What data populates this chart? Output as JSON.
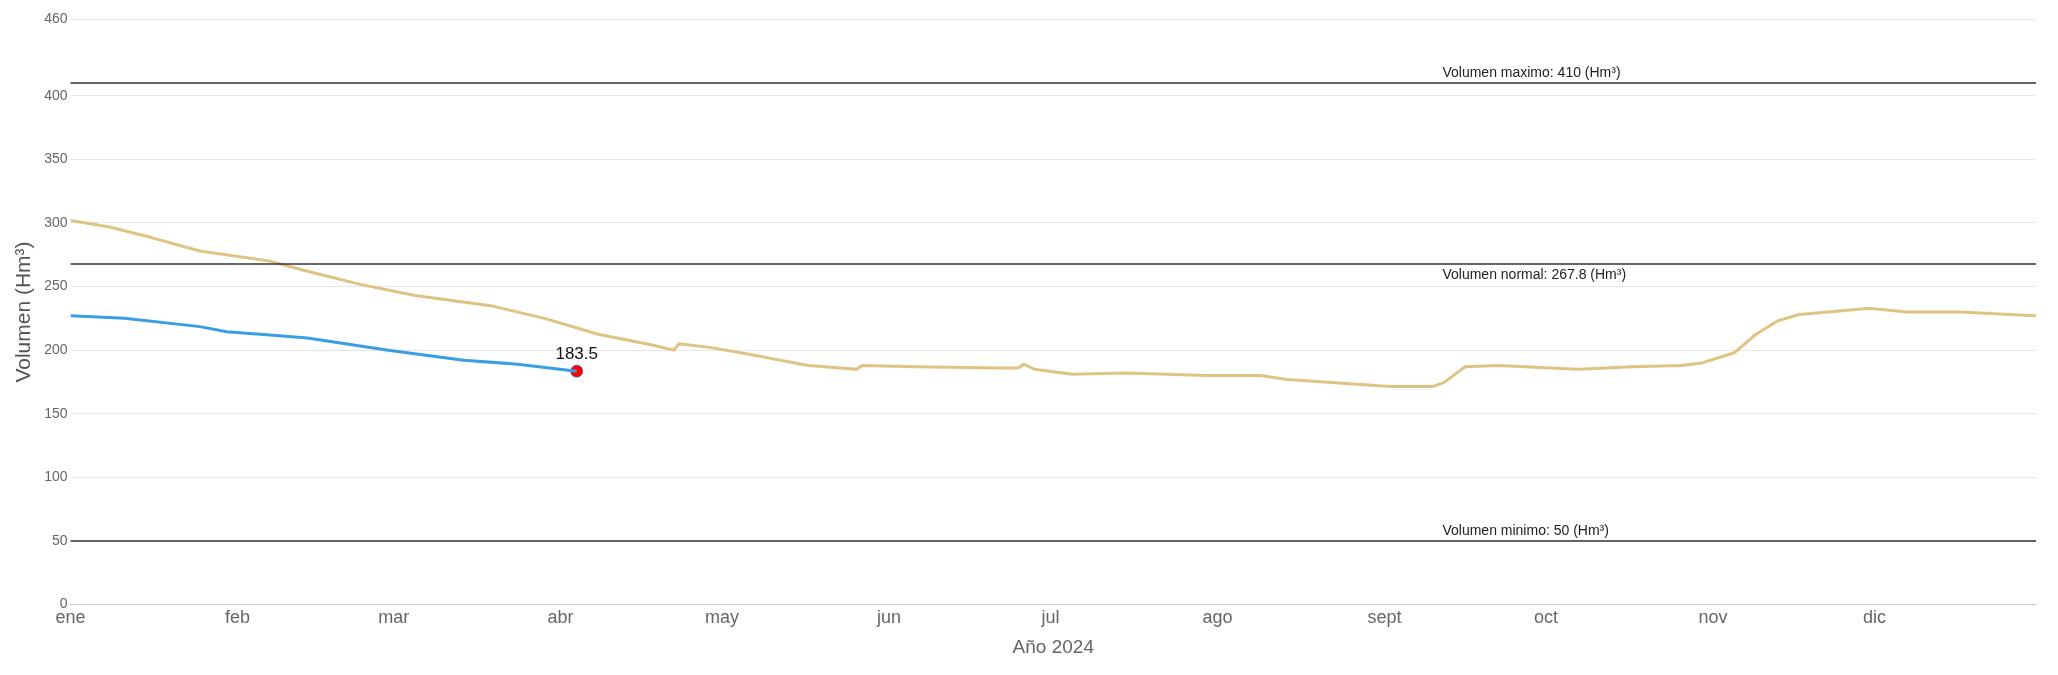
{
  "chart_data": {
    "type": "line",
    "xlabel": "Año 2024",
    "ylabel": "Volumen (Hm³)",
    "xlim": [
      "2024-01-01",
      "2024-12-31"
    ],
    "xticks": [
      {
        "value": "2024-01-01",
        "label": "ene"
      },
      {
        "value": "2024-02-01",
        "label": "feb"
      },
      {
        "value": "2024-03-01",
        "label": "mar"
      },
      {
        "value": "2024-04-01",
        "label": "abr"
      },
      {
        "value": "2024-05-01",
        "label": "may"
      },
      {
        "value": "2024-06-01",
        "label": "jun"
      },
      {
        "value": "2024-07-01",
        "label": "jul"
      },
      {
        "value": "2024-08-01",
        "label": "ago"
      },
      {
        "value": "2024-09-01",
        "label": "sept"
      },
      {
        "value": "2024-10-01",
        "label": "oct"
      },
      {
        "value": "2024-11-01",
        "label": "nov"
      },
      {
        "value": "2024-12-01",
        "label": "dic"
      }
    ],
    "ylim": [
      0,
      460
    ],
    "yticks": [
      0,
      50,
      100,
      150,
      200,
      250,
      300,
      350,
      400,
      460
    ],
    "grid": "y",
    "legend": false,
    "marker": "none",
    "line_style": "solid",
    "series": [
      {
        "color": "#e0c382",
        "x": [
          "2024-01-01",
          "2024-01-08",
          "2024-01-16",
          "2024-01-25",
          "2024-02-07",
          "2024-02-14",
          "2024-02-24",
          "2024-03-05",
          "2024-03-19",
          "2024-03-29",
          "2024-04-08",
          "2024-04-18",
          "2024-04-22",
          "2024-04-23",
          "2024-04-29",
          "2024-05-07",
          "2024-05-17",
          "2024-05-26",
          "2024-05-27",
          "2024-06-06",
          "2024-06-21",
          "2024-06-25",
          "2024-06-26",
          "2024-06-28",
          "2024-07-05",
          "2024-07-15",
          "2024-07-30",
          "2024-08-09",
          "2024-08-14",
          "2024-09-02",
          "2024-09-10",
          "2024-09-12",
          "2024-09-16",
          "2024-09-22",
          "2024-10-07",
          "2024-10-17",
          "2024-10-26",
          "2024-10-30",
          "2024-11-05",
          "2024-11-09",
          "2024-11-13",
          "2024-11-17",
          "2024-11-25",
          "2024-11-30",
          "2024-12-07",
          "2024-12-17",
          "2024-12-31"
        ],
        "values": [
          302,
          297,
          288.5,
          278,
          270,
          262,
          251.5,
          243,
          235,
          225,
          212.5,
          204,
          200,
          205,
          202,
          196,
          188,
          185,
          188,
          187,
          186,
          186,
          189,
          185,
          181,
          182,
          180,
          180,
          177,
          171.5,
          171.5,
          174.5,
          187,
          188,
          185,
          187,
          188,
          190,
          198,
          212.5,
          223,
          228,
          231,
          233,
          230,
          230,
          227
        ]
      },
      {
        "color": "#3a9ee4",
        "x": [
          "2024-01-01",
          "2024-01-11",
          "2024-01-25",
          "2024-01-30",
          "2024-02-14",
          "2024-02-29",
          "2024-03-14",
          "2024-03-24",
          "2024-04-04"
        ],
        "values": [
          227,
          225,
          218.5,
          214.5,
          209.5,
          200,
          192,
          189,
          183.5
        ]
      },
      {
        "type": "scatter",
        "marker": "circle",
        "color": "#ff0000",
        "x": [
          "2024-04-04"
        ],
        "values": [
          183.5
        ],
        "value_labels": [
          "183.5"
        ]
      }
    ],
    "ref_lines": [
      {
        "axis": "y",
        "value": 410,
        "label": "Volumen maximo: 410 (Hm³)",
        "color": "#333333"
      },
      {
        "axis": "y",
        "value": 267.8,
        "label": "Volumen normal: 267.8 (Hm³)",
        "color": "#333333"
      },
      {
        "axis": "y",
        "value": 50,
        "label": "Volumen minimo: 50 (Hm³)",
        "color": "#333333"
      }
    ]
  }
}
